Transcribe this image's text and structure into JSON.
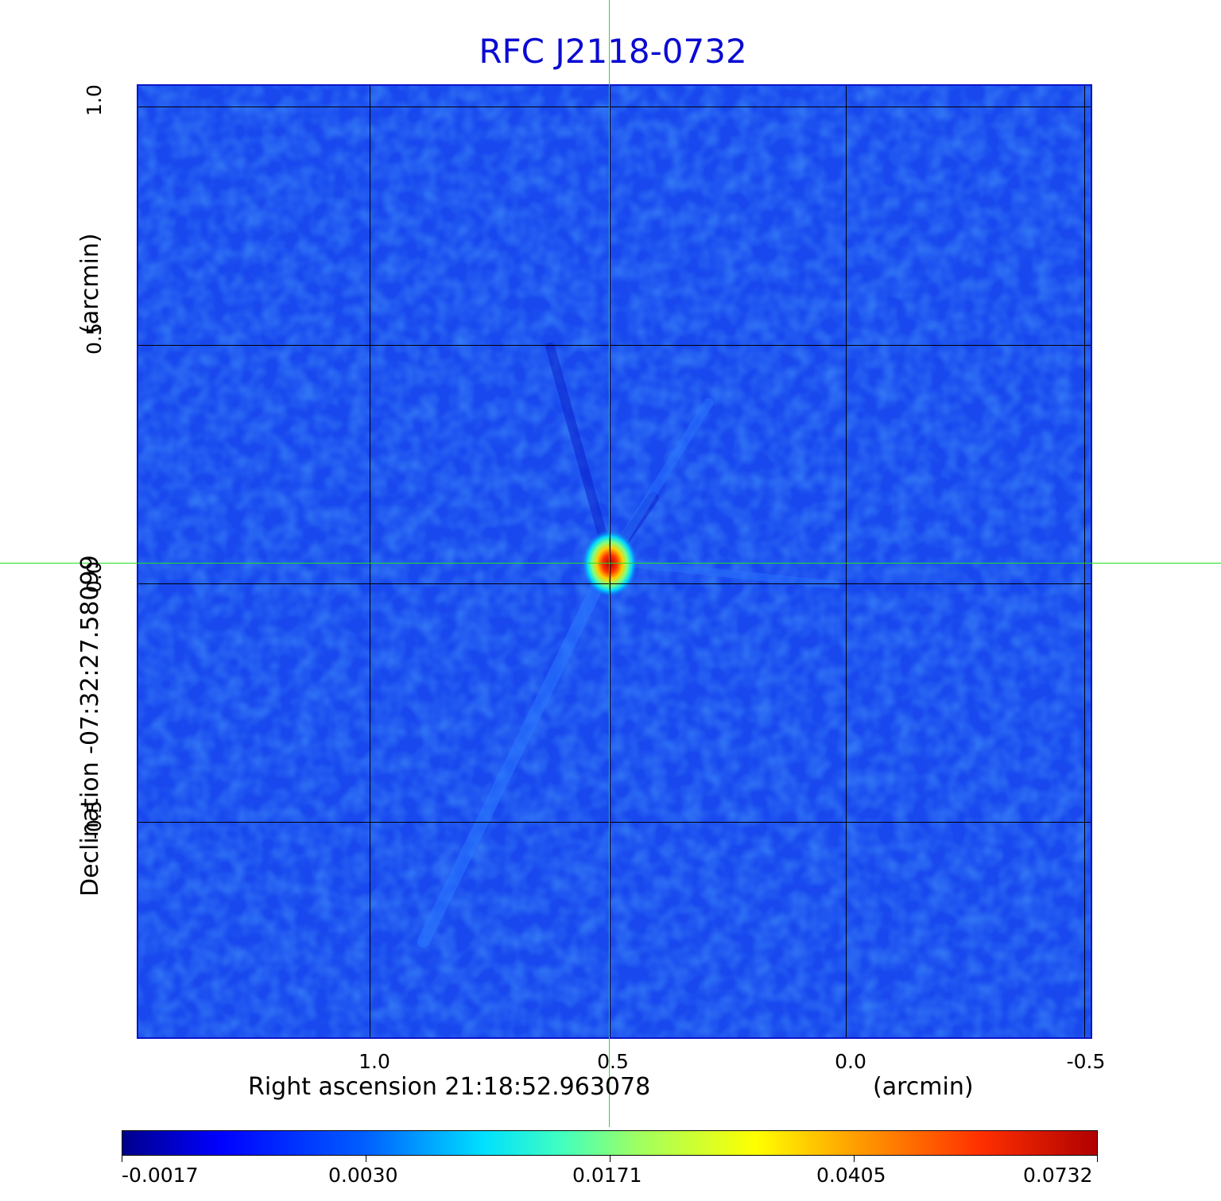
{
  "title": "RFC J2118-0732",
  "x_axis": {
    "label": "Right ascension  21:18:52.963078",
    "unit": "(arcmin)",
    "ticks": [
      "1.0",
      "0.5",
      "0.0",
      "-0.5"
    ]
  },
  "y_axis": {
    "label": "Declination  -07:32:27.58099",
    "unit": "(arcmin)",
    "ticks": [
      "1.0",
      "0.5",
      "0.0",
      "-0.5"
    ]
  },
  "colorbar": {
    "ticks": [
      "-0.0017",
      "0.0030",
      "0.0171",
      "0.0405",
      "0.0732"
    ]
  },
  "colors": {
    "title": "#0a0ad2",
    "background_field": "#1a4cf0",
    "crosshair": "#22e022"
  }
}
